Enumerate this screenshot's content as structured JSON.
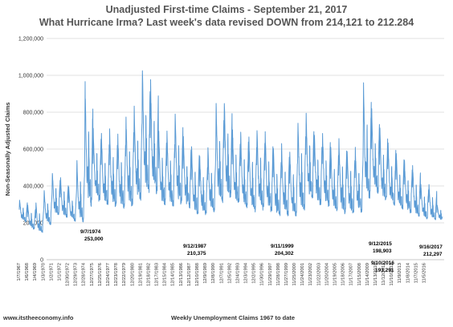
{
  "chart_data": {
    "type": "line",
    "title": "Unadjusted First-time Claims - September 21, 2017",
    "subtitle": "What Hurricane Irma? Last week's data revised DOWN from 214,121 to 212.284",
    "xlabel": "Weekly Unemployment Claims 1967 to date",
    "ylabel": "Non-Seasonally Adjusted Claims",
    "ylim": [
      0,
      1200000
    ],
    "yticks": [
      "0",
      "200,000",
      "400,000",
      "600,000",
      "800,000",
      "1,000,000",
      "1,200,000"
    ],
    "grid": true,
    "line_color": "#5b9bd5",
    "x_ticks": [
      "1/7/1967",
      "1/6/1968",
      "1/4/1969",
      "1/3/1970",
      "1/2/1971",
      "1/1/1972",
      "12/30/1972",
      "12/29/1973",
      "12/28/1974",
      "12/27/1975",
      "12/25/1976",
      "12/24/1977",
      "12/23/1978",
      "12/22/1979",
      "12/20/1980",
      "12/19/1981",
      "12/18/1982",
      "12/17/1983",
      "12/15/1984",
      "12/14/1985",
      "12/13/1986",
      "12/12/1987",
      "12/10/1988",
      "12/9/1989",
      "12/8/1990",
      "12/7/1991",
      "12/5/1992",
      "12/4/1993",
      "12/3/1994",
      "12/2/1995",
      "11/30/1996",
      "11/29/1997",
      "11/28/1998",
      "11/27/1999",
      "11/25/2000",
      "11/24/2001",
      "11/23/2002",
      "11/22/2003",
      "11/20/2004",
      "11/19/2005",
      "11/18/2006",
      "11/17/2007",
      "11/15/2008",
      "11/14/2009",
      "11/13/2010",
      "11/12/2011",
      "11/10/2012",
      "11/9/2013",
      "11/8/2014",
      "11/7/2015",
      "11/5/2016"
    ],
    "series": [
      {
        "yearly_peaks": [
          330000,
          300000,
          310000,
          380000,
          480000,
          450000,
          400000,
          560000,
          970000,
          720000,
          690000,
          710000,
          690000,
          780000,
          840000,
          1070000,
          980000,
          700000,
          700000,
          800000,
          670000,
          630000,
          560000,
          620000,
          870000,
          880000,
          720000,
          700000,
          690000,
          720000,
          700000,
          610000,
          630000,
          600000,
          770000,
          800000,
          700000,
          700000,
          620000,
          660000,
          610000,
          610000,
          960000,
          820000,
          720000,
          650000,
          590000,
          550000,
          520000,
          420000,
          410000,
          300000
        ],
        "yearly_troughs": [
          200000,
          160000,
          140000,
          180000,
          230000,
          220000,
          200000,
          190000,
          260000,
          300000,
          280000,
          270000,
          260000,
          270000,
          300000,
          320000,
          330000,
          280000,
          270000,
          280000,
          260000,
          230000,
          230000,
          240000,
          280000,
          310000,
          280000,
          260000,
          240000,
          250000,
          240000,
          220000,
          220000,
          220000,
          240000,
          300000,
          280000,
          270000,
          240000,
          230000,
          230000,
          240000,
          300000,
          340000,
          300000,
          280000,
          260000,
          240000,
          220000,
          210000,
          200000,
          210000
        ]
      }
    ],
    "annotations": [
      {
        "label": "9/7/1974",
        "value": "253,000"
      },
      {
        "label": "9/12/1987",
        "value": "210,375"
      },
      {
        "label": "9/11/1999",
        "value": "204,302"
      },
      {
        "label": "9/12/2015",
        "value": "198,903"
      },
      {
        "label": "9/10/2016",
        "value": "193,291"
      },
      {
        "label": "9/16/2017",
        "value": "212,297"
      }
    ]
  },
  "footer": "www.itstheeconomy.info"
}
